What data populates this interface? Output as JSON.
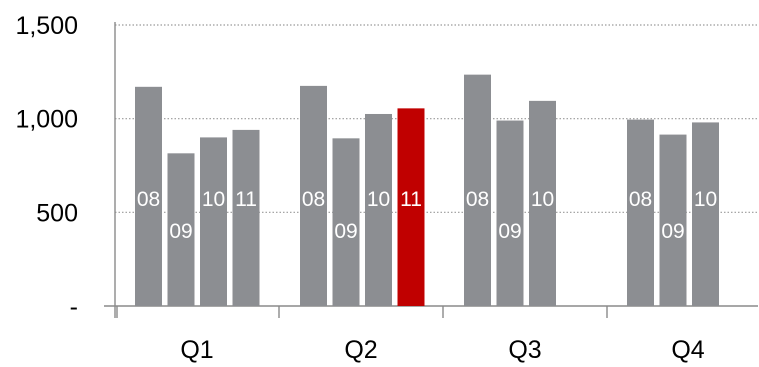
{
  "chart_data": {
    "type": "bar",
    "categories": [
      "Q1",
      "Q2",
      "Q3",
      "Q4"
    ],
    "series": [
      {
        "name": "08",
        "values": [
          1170,
          1175,
          1235,
          995
        ]
      },
      {
        "name": "09",
        "values": [
          815,
          895,
          990,
          915
        ]
      },
      {
        "name": "10",
        "values": [
          900,
          1025,
          1095,
          980
        ]
      },
      {
        "name": "11",
        "values": [
          940,
          1055,
          null,
          null
        ]
      }
    ],
    "ylim": [
      0,
      1500
    ],
    "yticks": [
      0,
      500,
      1000,
      1500
    ],
    "ytick_labels": [
      "-",
      "500",
      "1,000",
      "1,500"
    ],
    "grid": "horizontal-dotted",
    "bar_color": "#8c8e92",
    "highlight": {
      "category": "Q2",
      "series": "11",
      "color": "#c00000"
    },
    "title": "",
    "xlabel": "",
    "ylabel": ""
  }
}
